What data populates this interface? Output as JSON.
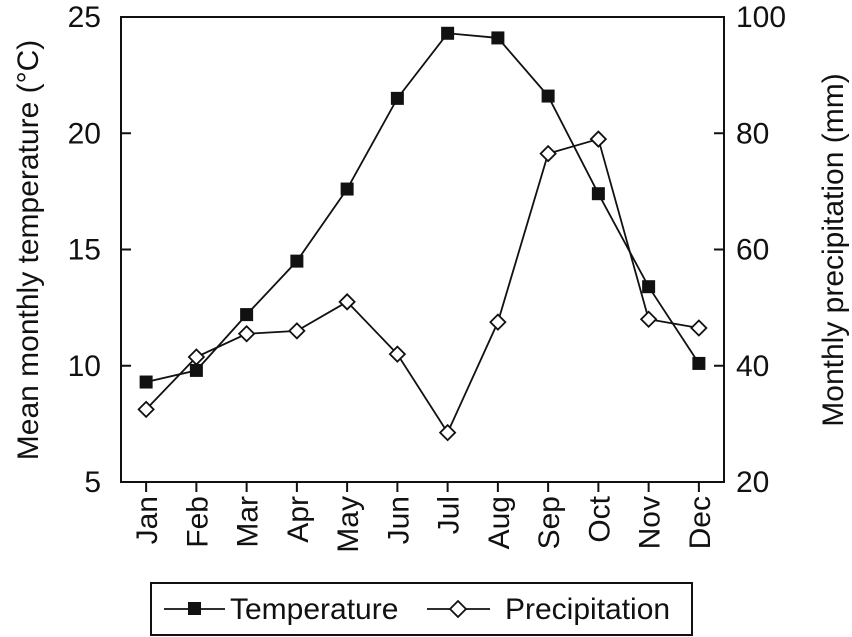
{
  "chart_data": {
    "type": "line",
    "categories": [
      "Jan",
      "Feb",
      "Mar",
      "Apr",
      "May",
      "Jun",
      "Jul",
      "Aug",
      "Sep",
      "Oct",
      "Nov",
      "Dec"
    ],
    "series": [
      {
        "name": "Temperature",
        "axis": "left",
        "marker": "filled-square",
        "values": [
          9.3,
          9.8,
          12.2,
          14.5,
          17.6,
          21.5,
          24.3,
          24.1,
          21.6,
          17.4,
          13.4,
          10.1
        ]
      },
      {
        "name": "Precipitation",
        "axis": "right",
        "marker": "open-diamond",
        "values": [
          32.5,
          41.5,
          45.5,
          46.0,
          51.0,
          42.0,
          28.5,
          47.5,
          76.5,
          79.0,
          48.0,
          46.5
        ]
      }
    ],
    "ylabel": "Mean monthly temperature (°C)",
    "y2label": "Monthly precipitation (mm)",
    "xlabel": "",
    "ylim": [
      5,
      25
    ],
    "y2lim": [
      20,
      100
    ],
    "yticks": [
      5,
      10,
      15,
      20,
      25
    ],
    "y2ticks": [
      20,
      40,
      60,
      80,
      100
    ],
    "grid": false,
    "legend": "bottom-center"
  }
}
